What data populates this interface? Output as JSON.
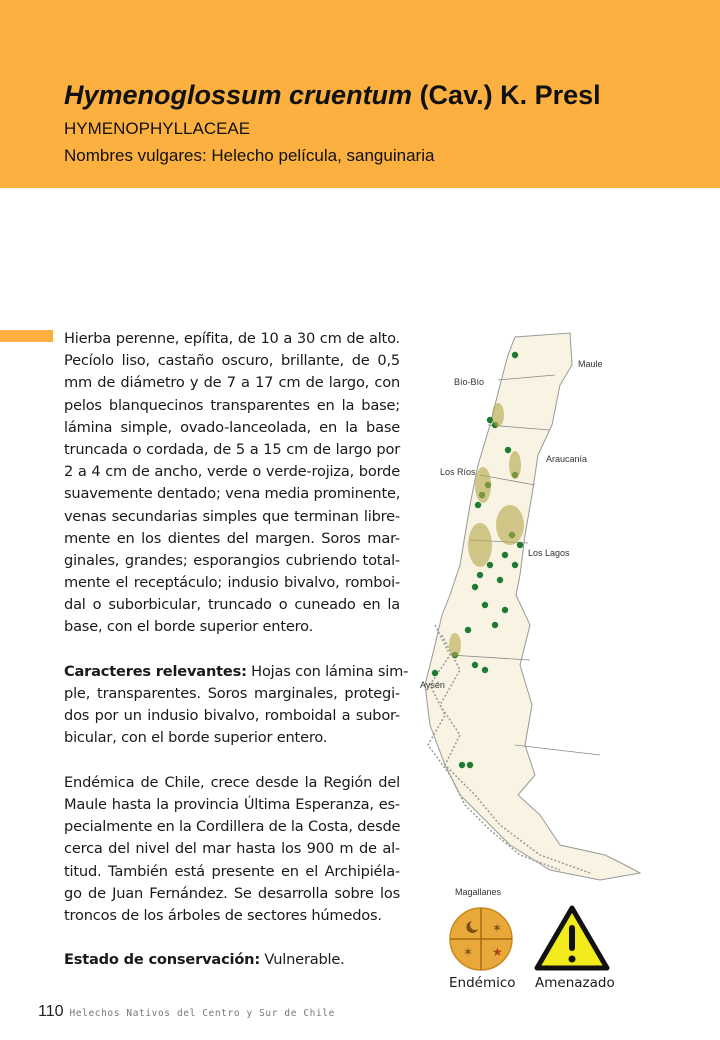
{
  "header": {
    "title_species": "Hymenoglossum cruentum",
    "title_author": " (Cav.) K. Presl",
    "family": "HYMENOPHYLLACEAE",
    "common_names": "Nombres vulgares: Helecho película, sanguinaria",
    "color": "#fbb040"
  },
  "description": {
    "lines": [
      "Hierba perenne, epífita, de 10 a 30 cm de alto.",
      "Pecíolo liso, castaño oscuro, brillante, de 0,5",
      "mm de diámetro y de 7 a 17 cm de largo, con",
      "pelos blanquecinos transparentes en la base;",
      "lámina simple, ovado-lanceolada, en la base",
      "truncada o cordada, de 5 a 15 cm de largo por",
      "2 a 4 cm de ancho, verde o verde-rojiza, borde",
      "suavemente dentado; vena media prominente,",
      "venas secundarias simples que terminan libre-",
      "mente en los dientes del margen. Soros mar-",
      "ginales, grandes; esporangios cubriendo total-",
      "mente el receptáculo; indusio bivalvo, romboi-",
      "dal o suborbicular, truncado o cuneado en la",
      "base, con el borde superior entero."
    ]
  },
  "relevant": {
    "label": "Caracteres relevantes:",
    "first_line": " Hojas con lámina sim-",
    "lines": [
      "ple, transparentes. Soros marginales, protegi-",
      "dos por un indusio bivalvo, romboidal a subor-",
      "bicular, con el borde superior entero."
    ]
  },
  "distribution": {
    "lines": [
      "Endémica de Chile, crece desde la Región del",
      "Maule hasta la provincia Última Esperanza, es-",
      "pecialmente en la Cordillera de la Costa, desde",
      "cerca del nivel del mar hasta los 900 m de al-",
      "titud. También está presente en el Archipiéla-",
      "go de Juan Fernández. Se desarrolla sobre los",
      "troncos de los árboles de sectores húmedos."
    ]
  },
  "conservation": {
    "label": "Estado de conservación:",
    "value": " Vulnerable."
  },
  "map": {
    "regions": [
      "Maule",
      "Bío-Bío",
      "Araucanía",
      "Los Ríos",
      "Los Lagos",
      "Aysén",
      "Magallanes"
    ],
    "land_color": "#f8f3e3",
    "record_color": "#1e7a32",
    "habitat_color": "#b5a84a"
  },
  "badges": {
    "endemic": {
      "label": "Endémico",
      "icon": "kultrun-icon",
      "color": "#e8a93a"
    },
    "threatened": {
      "label": "Amenazado",
      "icon": "warning-triangle-icon",
      "color": "#f2ea1c"
    }
  },
  "footer": {
    "page_number": "110",
    "book_title": "Helechos Nativos del Centro y Sur de Chile"
  }
}
